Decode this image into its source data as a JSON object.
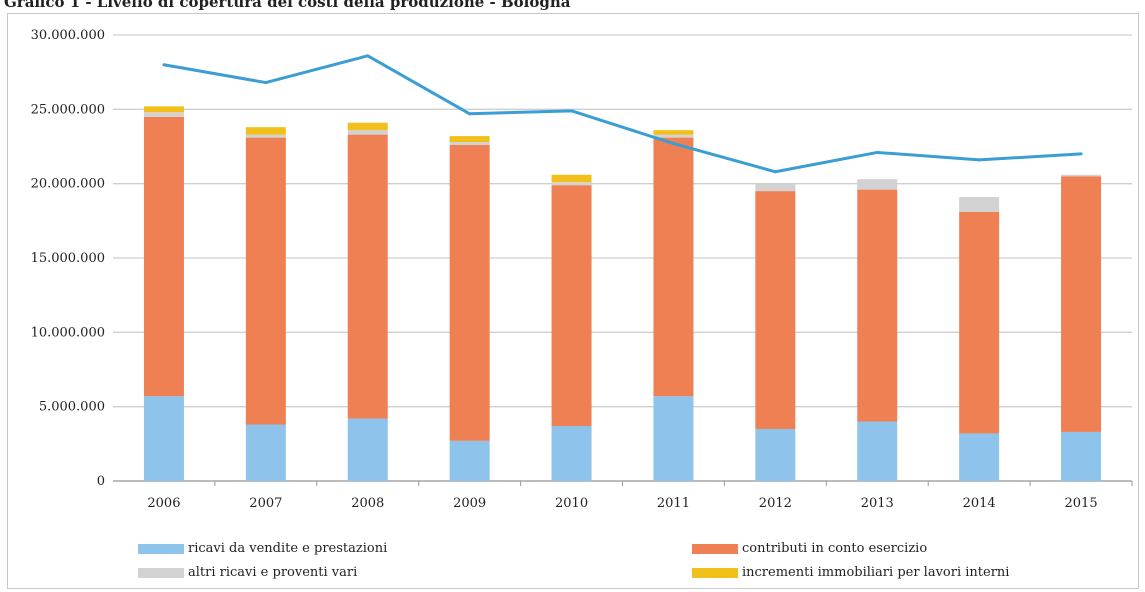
{
  "page_title": "Grafico 1 - Livello di copertura dei costi della produzione - Bologna",
  "colors": {
    "ricavi": "#8ec3ec",
    "contributi": "#ef8054",
    "altri": "#d2d2d2",
    "incrementi": "#f2c01a",
    "line": "#3a9ed4",
    "grid": "#cfcfcf"
  },
  "chart_data": {
    "type": "bar",
    "stacked": true,
    "categories": [
      "2006",
      "2007",
      "2008",
      "2009",
      "2010",
      "2011",
      "2012",
      "2013",
      "2014",
      "2015"
    ],
    "ylim": [
      0,
      30000000
    ],
    "yticks": [
      "30.000.000",
      "25.000.000",
      "20.000.000",
      "15.000.000",
      "10.000.000",
      "5.000.000",
      "0"
    ],
    "ytick_values": [
      30000000,
      25000000,
      20000000,
      15000000,
      10000000,
      5000000,
      0
    ],
    "grid": true,
    "legend_position": "bottom",
    "series": [
      {
        "name": "ricavi da vendite e prestazioni",
        "type": "bar",
        "values": [
          5700000,
          3800000,
          4200000,
          2700000,
          3700000,
          5700000,
          3500000,
          4000000,
          3200000,
          3300000
        ]
      },
      {
        "name": "contributi in conto esercizio",
        "type": "bar",
        "values": [
          18800000,
          19300000,
          19100000,
          19900000,
          16200000,
          17400000,
          16000000,
          15600000,
          14900000,
          17200000
        ]
      },
      {
        "name": "altri ricavi e proventi vari",
        "type": "bar",
        "values": [
          300000,
          200000,
          300000,
          200000,
          200000,
          200000,
          500000,
          700000,
          1000000,
          100000
        ]
      },
      {
        "name": "incrementi immobiliari per lavori interni",
        "type": "bar",
        "values": [
          400000,
          500000,
          500000,
          400000,
          500000,
          300000,
          0,
          0,
          0,
          0
        ]
      },
      {
        "name": "costi della produzione",
        "type": "line",
        "values": [
          28000000,
          26800000,
          28600000,
          24700000,
          24900000,
          22700000,
          20800000,
          22100000,
          21600000,
          22000000
        ]
      }
    ]
  }
}
